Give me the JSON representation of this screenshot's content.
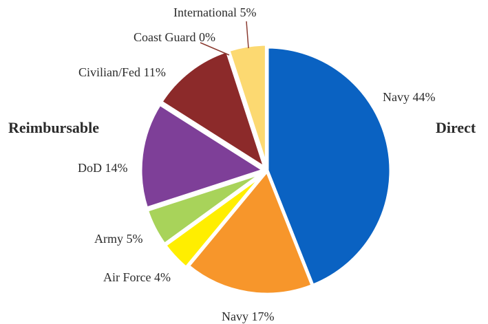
{
  "chart_data": {
    "type": "pie",
    "title": "",
    "group_labels": [
      {
        "id": "reimbursable",
        "text": "Reimbursable"
      },
      {
        "id": "direct",
        "text": "Direct"
      }
    ],
    "slices": [
      {
        "label": "Navy 44%",
        "category": "Navy",
        "value": 44,
        "color": "#0a62c2",
        "group": "Direct"
      },
      {
        "label": "Navy 17%",
        "category": "Navy",
        "value": 17,
        "color": "#f7962b",
        "group": "Direct"
      },
      {
        "label": "Air Force 4%",
        "category": "Air Force",
        "value": 4,
        "color": "#ffee00",
        "group": "Reimbursable"
      },
      {
        "label": "Army 5%",
        "category": "Army",
        "value": 5,
        "color": "#a8d35a",
        "group": "Reimbursable"
      },
      {
        "label": "DoD 14%",
        "category": "DoD",
        "value": 14,
        "color": "#7e3f98",
        "group": "Reimbursable"
      },
      {
        "label": "Civilian/Fed 11%",
        "category": "Civilian/Fed",
        "value": 11,
        "color": "#8c2a2a",
        "group": "Reimbursable"
      },
      {
        "label": "Coast Guard 0%",
        "category": "Coast Guard",
        "value": 0,
        "color": "#b05a48",
        "group": "Reimbursable"
      },
      {
        "label": "International 5%",
        "category": "International",
        "value": 5,
        "color": "#fcd971",
        "group": "Reimbursable"
      }
    ]
  }
}
